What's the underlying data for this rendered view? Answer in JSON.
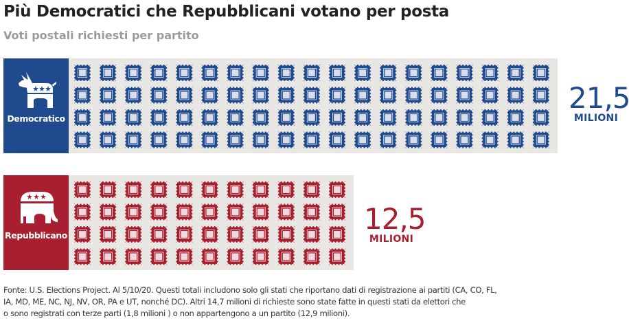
{
  "header": {
    "title": "Più Democratici che Repubblicani votano per posta",
    "subtitle": "Voti postali richiesti per partito"
  },
  "colors": {
    "democratic": "#1f4a8e",
    "republican": "#a8202f",
    "panel_bg": "#e9e7e3"
  },
  "chart_data": {
    "type": "pictogram",
    "title": "Più Democratici che Repubblicani votano per posta",
    "subtitle": "Voti postali richiesti per partito",
    "unit": "MILIONI",
    "series": [
      {
        "name": "Democratico",
        "icon": "donkey-icon",
        "value": 21.5,
        "value_label": "21,5",
        "unit_label": "MILIONI",
        "stamp_count": 76,
        "stamp_rows": 4,
        "stamp_cols": 19
      },
      {
        "name": "Repubblicano",
        "icon": "elephant-icon",
        "value": 12.5,
        "value_label": "12,5",
        "unit_label": "MILIONI",
        "stamp_count": 44,
        "stamp_rows": 4,
        "stamp_cols": 11
      }
    ]
  },
  "footnote": {
    "lines": [
      "Fonte: U.S. Elections Project. Al 5/10/20. Questi totali includono solo gli stati che riportano dati di registrazione ai partiti (CA, CO, FL,",
      "IA, MD, ME, NC, NJ, NV, OR, PA e UT, nonché DC). Altri 14,7 milioni di richieste sono state fatte in questi stati da elettori che",
      "o sono registrati con terze parti (1,8 milioni ) o non appartengono a un partito (12,9 milioni)."
    ]
  }
}
